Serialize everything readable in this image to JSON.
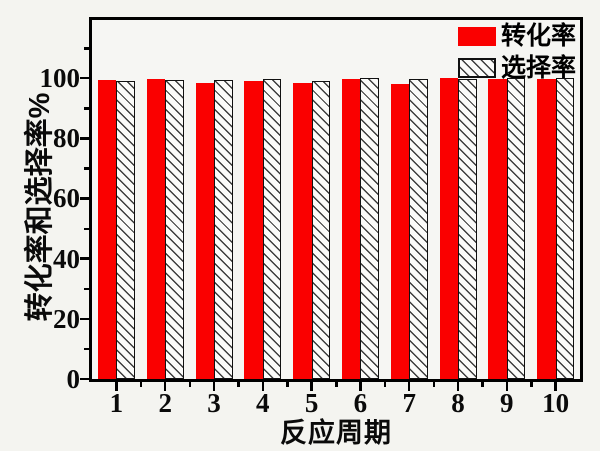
{
  "figure": {
    "background_color": "#f4f4f0",
    "plot_background_color": "#f6f6f3",
    "bar_color": "#fa0000",
    "hatch_line_color": "#3c3c3c",
    "hatch_fill_color": "#fbfbf9",
    "axis_color": "#000000"
  },
  "chart_data": {
    "type": "bar",
    "xlabel": "反应周期",
    "ylabel": "转化率和选择率%",
    "categories": [
      "1",
      "2",
      "3",
      "4",
      "5",
      "6",
      "7",
      "8",
      "9",
      "10"
    ],
    "series": [
      {
        "name": "转化率",
        "style": "solid-red",
        "values": [
          99.4,
          99.6,
          98.3,
          99.1,
          98.3,
          99.6,
          98.0,
          100.0,
          99.6,
          99.6
        ]
      },
      {
        "name": "选择率",
        "style": "hatched",
        "values": [
          99.1,
          99.4,
          99.4,
          99.7,
          98.9,
          99.9,
          99.8,
          99.7,
          99.9,
          99.9
        ]
      }
    ],
    "ylim": [
      0,
      119.3
    ],
    "yticks_major": [
      0,
      20,
      40,
      60,
      80,
      100
    ],
    "yticks_minor": [
      10,
      30,
      50,
      70,
      90,
      110
    ],
    "legend_position": "top-right",
    "grid": false
  }
}
